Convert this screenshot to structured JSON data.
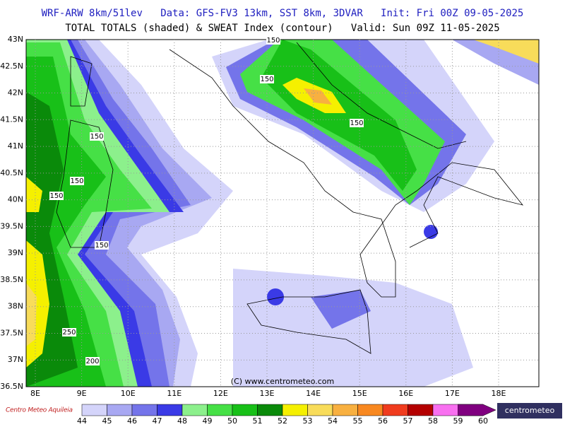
{
  "header": {
    "line1": "WRF-ARW 8km/51lev   Data: GFS-FV3 13km, SST 8km, 3DVAR   Init: Fri 00Z 09-05-2025",
    "line2": "TOTAL TOTALS (shaded) & SWEAT Index (contour)   Valid: Sun 09Z 11-05-2025"
  },
  "map": {
    "lat_labels": [
      "43N",
      "42.5N",
      "42N",
      "41.5N",
      "41N",
      "40.5N",
      "40N",
      "39.5N",
      "39N",
      "38.5N",
      "38N",
      "37.5N",
      "37N",
      "36.5N"
    ],
    "lon_labels": [
      "8E",
      "9E",
      "10E",
      "11E",
      "12E",
      "13E",
      "14E",
      "15E",
      "16E",
      "17E",
      "18E"
    ],
    "contour_labels": [
      "150",
      "150",
      "150",
      "150",
      "150",
      "150",
      "150",
      "250",
      "200"
    ],
    "credit": "(C) www.centrometeo.com"
  },
  "colorbar": {
    "labels": [
      44,
      45,
      46,
      47,
      48,
      49,
      50,
      51,
      52,
      53,
      54,
      55,
      56,
      57,
      58,
      59,
      60
    ],
    "colors": [
      "#d4d4fa",
      "#a8a8f2",
      "#7474ea",
      "#3a3ae6",
      "#8cf08c",
      "#46e046",
      "#18c018",
      "#0a8a0a",
      "#f5f000",
      "#f8dc5a",
      "#f8b040",
      "#f88820",
      "#f03c1e",
      "#b40000",
      "#f870f0",
      "#c000c0",
      "#800080"
    ]
  },
  "logos": {
    "left": "Centro Meteo Aquileia",
    "right": "centrometeo"
  }
}
